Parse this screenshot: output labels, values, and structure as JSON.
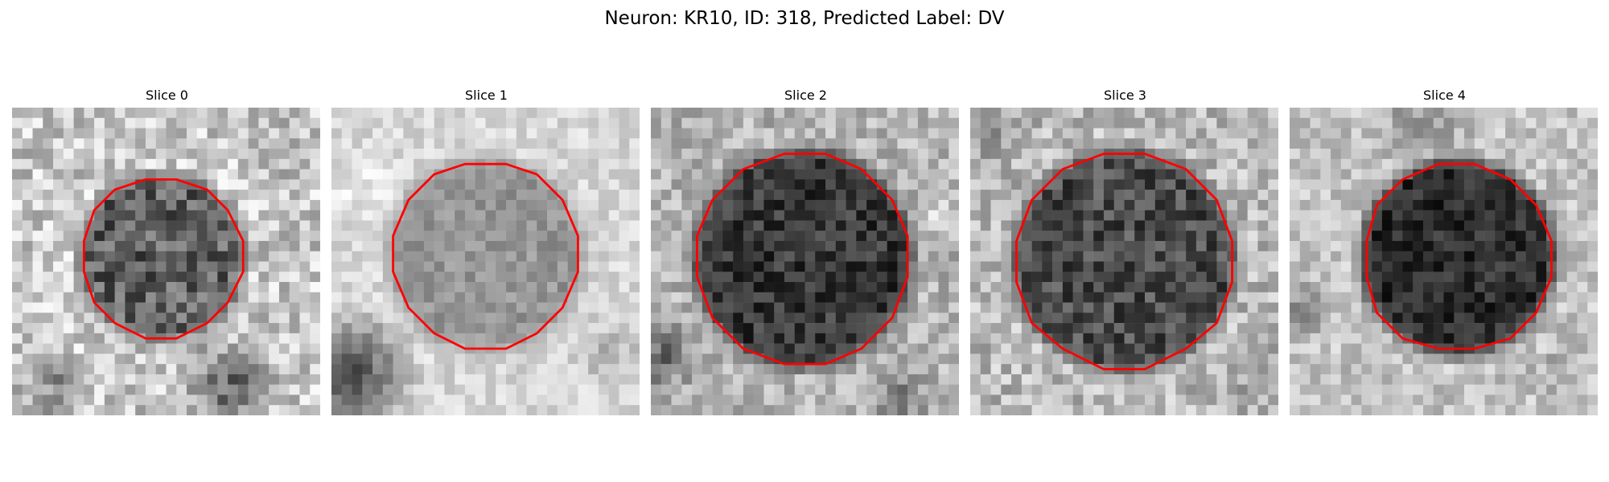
{
  "figure": {
    "title": "Neuron: KR10, ID: 318, Predicted Label: DV"
  },
  "panels": [
    {
      "title": "Slice 0"
    },
    {
      "title": "Slice 1"
    },
    {
      "title": "Slice 2"
    },
    {
      "title": "Slice 3"
    },
    {
      "title": "Slice 4"
    }
  ],
  "colors": {
    "contour": "#ff0000",
    "background": "#ffffff",
    "image_colormap": "gray"
  }
}
